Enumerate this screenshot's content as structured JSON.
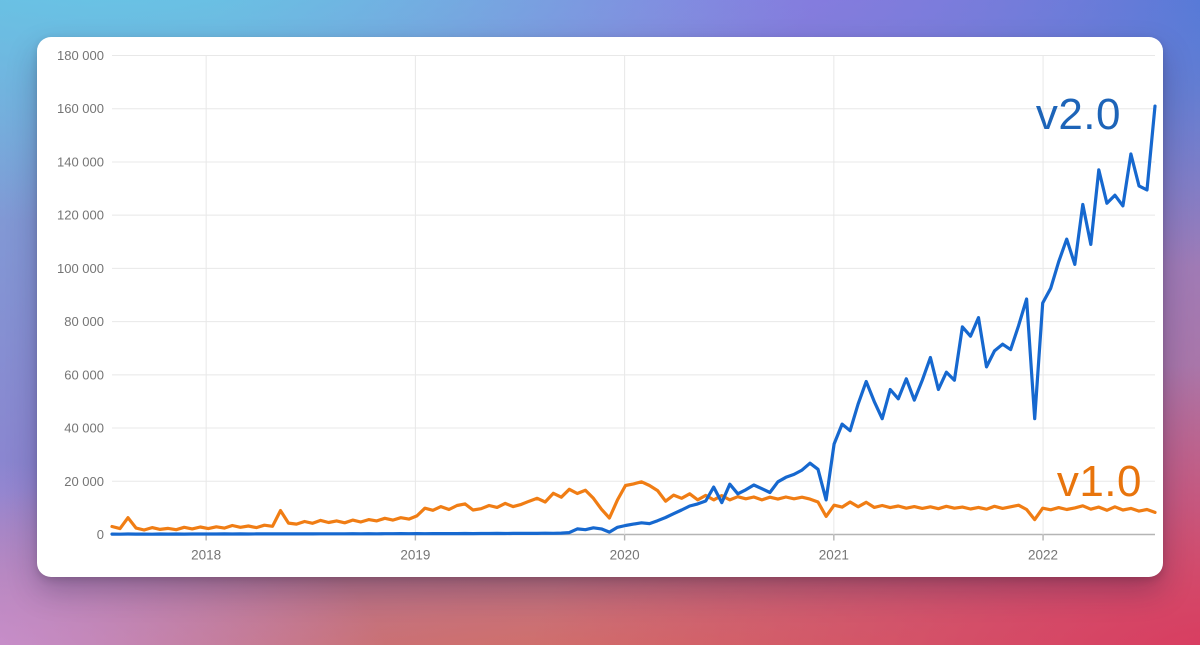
{
  "chart_data": {
    "type": "line",
    "title": "",
    "x_start": 2017.55,
    "x_end": 2022.535,
    "x_ticks": [
      2018,
      2019,
      2020,
      2021,
      2022
    ],
    "x_tick_labels": [
      "2018",
      "2019",
      "2020",
      "2021",
      "2022"
    ],
    "ylim": [
      0,
      180000
    ],
    "y_ticks": [
      0,
      20000,
      40000,
      60000,
      80000,
      100000,
      120000,
      140000,
      160000,
      180000
    ],
    "y_tick_labels": [
      "0",
      "20 000",
      "40 000",
      "60 000",
      "80 000",
      "100 000",
      "120 000",
      "140 000",
      "160 000",
      "180 000"
    ],
    "grid_on": true,
    "grid_color": "#e8e8e8",
    "axis_color": "#b5b5b5",
    "tick_label_color": "#757575",
    "legend_position": "inline-labels",
    "series": [
      {
        "name": "v2.0",
        "color": "#1668cf",
        "label_color": "#1d64b8",
        "values": [
          150,
          120,
          180,
          140,
          160,
          130,
          170,
          150,
          180,
          160,
          190,
          170,
          200,
          180,
          210,
          190,
          220,
          200,
          230,
          210,
          240,
          220,
          250,
          230,
          260,
          240,
          270,
          250,
          280,
          260,
          290,
          270,
          300,
          280,
          310,
          290,
          320,
          300,
          330,
          310,
          340,
          320,
          350,
          330,
          360,
          340,
          380,
          360,
          400,
          380,
          420,
          400,
          450,
          430,
          480,
          460,
          520,
          700,
          2100,
          1800,
          2500,
          2100,
          900,
          2700,
          3400,
          3900,
          4400,
          4100,
          5200,
          6400,
          7800,
          9200,
          10700,
          11500,
          12600,
          17800,
          12000,
          18900,
          15300,
          16800,
          18600,
          17200,
          15800,
          19800,
          21500,
          22600,
          24200,
          26800,
          24500,
          13000,
          34000,
          41500,
          39000,
          49000,
          57500,
          50000,
          43500,
          54500,
          51000,
          58500,
          50500,
          58000,
          66500,
          54500,
          61000,
          58000,
          78000,
          74500,
          81500,
          63000,
          69000,
          71500,
          69500,
          78500,
          88500,
          43500,
          87000,
          92500,
          102500,
          111000,
          101500,
          124000,
          109000,
          137000,
          124500,
          127500,
          123500,
          143000,
          131000,
          129500,
          161000
        ]
      },
      {
        "name": "v1.0",
        "color": "#f07d14",
        "label_color": "#e8740c",
        "values": [
          3000,
          2200,
          6300,
          2400,
          1700,
          2600,
          1900,
          2300,
          1800,
          2700,
          2100,
          2800,
          2200,
          2900,
          2400,
          3400,
          2700,
          3200,
          2600,
          3500,
          3100,
          9000,
          4300,
          3900,
          4900,
          4200,
          5300,
          4500,
          5100,
          4400,
          5400,
          4700,
          5600,
          5100,
          6100,
          5400,
          6300,
          5800,
          7000,
          9900,
          9100,
          10500,
          9400,
          10900,
          11500,
          9200,
          9700,
          10900,
          10200,
          11700,
          10500,
          11300,
          12500,
          13600,
          12200,
          15500,
          14000,
          17000,
          15400,
          16600,
          13600,
          9500,
          6200,
          13000,
          18400,
          19000,
          19800,
          18400,
          16500,
          12500,
          14800,
          13600,
          15300,
          13000,
          14700,
          13000,
          14600,
          13000,
          14200,
          13400,
          14100,
          13000,
          14000,
          13300,
          14100,
          13400,
          14000,
          13300,
          12200,
          6800,
          11000,
          10300,
          12200,
          10400,
          12100,
          10200,
          10900,
          10100,
          10700,
          9900,
          10500,
          9800,
          10400,
          9700,
          10600,
          9900,
          10300,
          9600,
          10200,
          9500,
          10600,
          9800,
          10400,
          11000,
          9400,
          5600,
          9900,
          9300,
          10100,
          9400,
          10000,
          10800,
          9500,
          10300,
          9100,
          10400,
          9200,
          9800,
          8800,
          9400,
          8300
        ]
      }
    ]
  }
}
